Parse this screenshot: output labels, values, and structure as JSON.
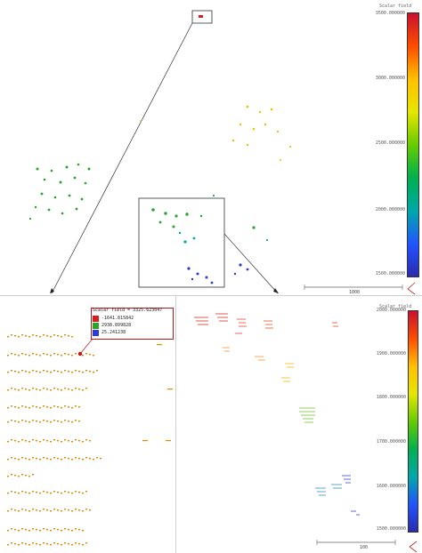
{
  "top_panel": {
    "colorbar": {
      "title": "Scalar field",
      "ticks": [
        "3500.000000",
        "3000.000000",
        "2500.000000",
        "2000.000000",
        "1500.000000"
      ],
      "colors": [
        "#c8102e",
        "#ff4d00",
        "#ffc000",
        "#e6e600",
        "#66cc00",
        "#00b050",
        "#00a8a8",
        "#2255ff",
        "#2a2ab0"
      ]
    },
    "scale_bar": {
      "label": "1000"
    }
  },
  "bottom_left_panel": {
    "rgb_box": {
      "title": "Scalar field = 3325.623047",
      "rows": [
        {
          "label": "-1641.815842",
          "color": "#d62020"
        },
        {
          "label": "2938.899828",
          "color": "#2aa52a"
        },
        {
          "label": "25.241238",
          "color": "#2c3bd2"
        }
      ]
    }
  },
  "bottom_right_panel": {
    "colorbar": {
      "title": "Scalar field",
      "ticks": [
        "2000.000000",
        "1900.000000",
        "1800.000000",
        "1700.000000",
        "1600.000000",
        "1500.000000"
      ],
      "colors": [
        "#c8102e",
        "#ff4d00",
        "#ffc000",
        "#e6e600",
        "#66cc00",
        "#00b050",
        "#00a8a8",
        "#2255ff",
        "#2a2ab0"
      ]
    },
    "scale_bar": {
      "label": "100"
    }
  }
}
